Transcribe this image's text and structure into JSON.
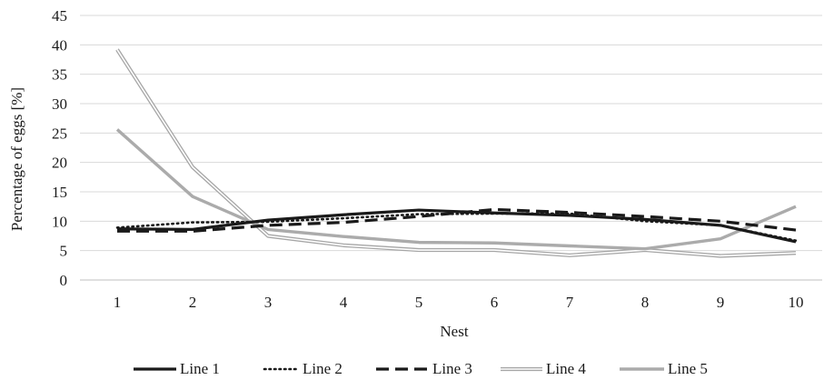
{
  "chart_data": {
    "type": "line",
    "title": "",
    "xlabel": "Nest",
    "ylabel": "Percentage of eggs [%]",
    "categories": [
      "1",
      "2",
      "3",
      "4",
      "5",
      "6",
      "7",
      "8",
      "9",
      "10"
    ],
    "y_ticks": [
      "0",
      "5",
      "10",
      "15",
      "20",
      "25",
      "30",
      "35",
      "40",
      "45"
    ],
    "ylim": [
      0,
      45
    ],
    "grid": "horizontal",
    "legend_position": "bottom",
    "series": [
      {
        "name": "Line 1",
        "style": "solid-black",
        "color": "#1a1a1a",
        "values": [
          8.7,
          8.6,
          10.2,
          11.1,
          11.9,
          11.4,
          11.0,
          10.3,
          9.3,
          6.5
        ]
      },
      {
        "name": "Line 2",
        "style": "dotted-black",
        "color": "#1a1a1a",
        "values": [
          8.9,
          9.8,
          9.9,
          10.5,
          11.2,
          11.3,
          11.3,
          10.0,
          9.3,
          6.7
        ]
      },
      {
        "name": "Line 3",
        "style": "dashed-black",
        "color": "#1a1a1a",
        "values": [
          8.3,
          8.3,
          9.3,
          9.8,
          10.8,
          12.0,
          11.5,
          10.8,
          10.0,
          8.5
        ]
      },
      {
        "name": "Line 4",
        "style": "double-gray",
        "color": "#a6a6a6",
        "values": [
          39.2,
          19.2,
          7.5,
          5.9,
          5.1,
          5.1,
          4.2,
          5.1,
          4.1,
          4.6
        ]
      },
      {
        "name": "Line 5",
        "style": "solid-gray",
        "color": "#ababab",
        "values": [
          25.6,
          14.2,
          8.6,
          7.4,
          6.4,
          6.3,
          5.8,
          5.3,
          7.0,
          12.5
        ]
      }
    ]
  }
}
